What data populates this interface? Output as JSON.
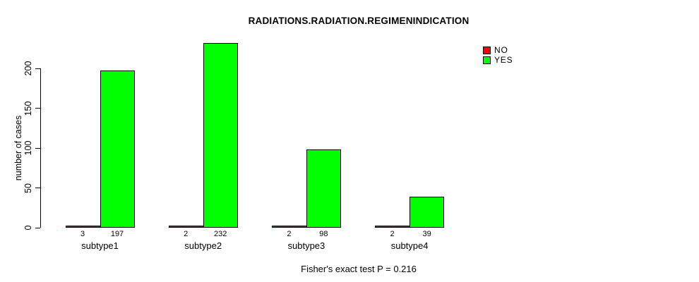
{
  "chart_data": {
    "type": "bar",
    "title": "RADIATIONS.RADIATION.REGIMENINDICATION",
    "xlabel": "",
    "ylabel": "number of cases",
    "categories": [
      "subtype1",
      "subtype2",
      "subtype3",
      "subtype4"
    ],
    "series": [
      {
        "name": "NO",
        "color": "#ff0000",
        "values": [
          3,
          2,
          2,
          2
        ]
      },
      {
        "name": "YES",
        "color": "#00ff00",
        "values": [
          197,
          232,
          98,
          39
        ]
      }
    ],
    "yticks": [
      0,
      50,
      100,
      150,
      200
    ],
    "ylim": [
      0,
      200
    ],
    "bar_value_labels": {
      "NO": [
        "3",
        "2",
        "2",
        "2"
      ],
      "YES": [
        "197",
        "232",
        "98",
        "39"
      ]
    },
    "grid": false,
    "legend_position": "top-right",
    "annotation": "Fisher's exact test P = 0.216"
  }
}
